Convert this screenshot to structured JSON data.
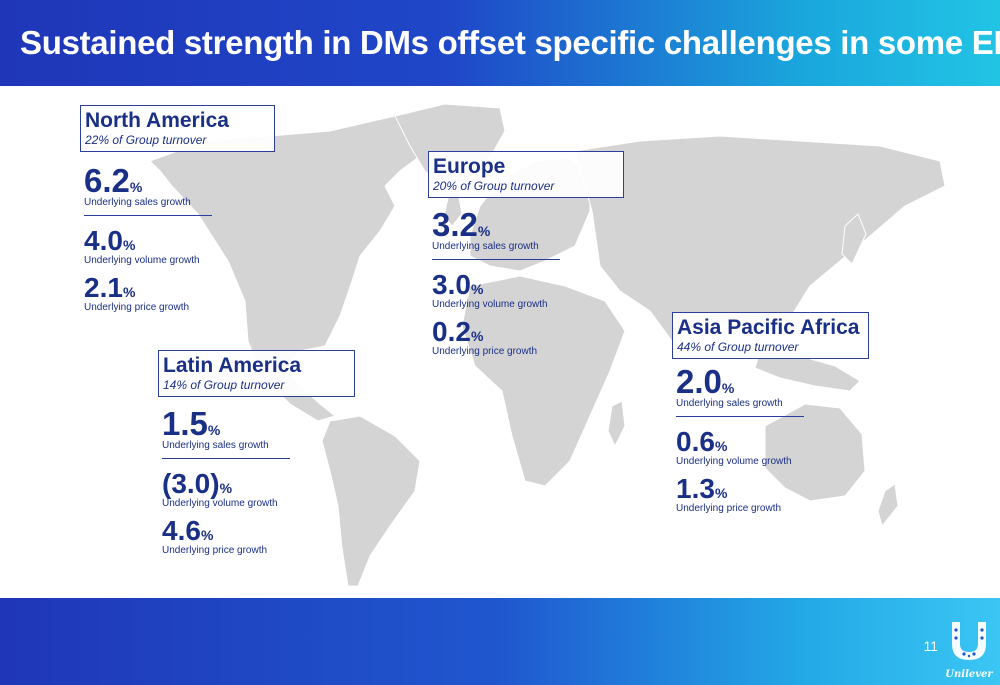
{
  "header": {
    "title": "Sustained strength in DMs offset specific challenges in some EMs"
  },
  "footer": {
    "page_number": "11",
    "logo_text": "Unilever"
  },
  "colors": {
    "header_start": "#1f36b8",
    "header_end": "#22c4e4",
    "text": "#1a2f86",
    "map_land": "#d4d4d4"
  },
  "regions": {
    "north_america": {
      "name": "North America",
      "share": "22% of Group turnover",
      "sales": {
        "value": "6.2",
        "unit": "%",
        "label": "Underlying sales growth"
      },
      "volume": {
        "value": "4.0",
        "unit": "%",
        "label": "Underlying volume growth"
      },
      "price": {
        "value": "2.1",
        "unit": "%",
        "label": "Underlying price growth"
      }
    },
    "europe": {
      "name": "Europe",
      "share": "20% of Group turnover",
      "sales": {
        "value": "3.2",
        "unit": "%",
        "label": "Underlying sales growth"
      },
      "volume": {
        "value": "3.0",
        "unit": "%",
        "label": "Underlying volume growth"
      },
      "price": {
        "value": "0.2",
        "unit": "%",
        "label": "Underlying price growth"
      }
    },
    "latin_america": {
      "name": "Latin America",
      "share": "14% of Group turnover",
      "sales": {
        "value": "1.5",
        "unit": "%",
        "label": "Underlying sales growth"
      },
      "volume": {
        "value": "(3.0)",
        "unit": "%",
        "label": "Underlying volume growth"
      },
      "price": {
        "value": "4.6",
        "unit": "%",
        "label": "Underlying price growth"
      }
    },
    "asia_pacific_africa": {
      "name": "Asia Pacific Africa",
      "share": "44% of Group turnover",
      "sales": {
        "value": "2.0",
        "unit": "%",
        "label": "Underlying sales growth"
      },
      "volume": {
        "value": "0.6",
        "unit": "%",
        "label": "Underlying volume growth"
      },
      "price": {
        "value": "1.3",
        "unit": "%",
        "label": "Underlying price growth"
      }
    }
  }
}
